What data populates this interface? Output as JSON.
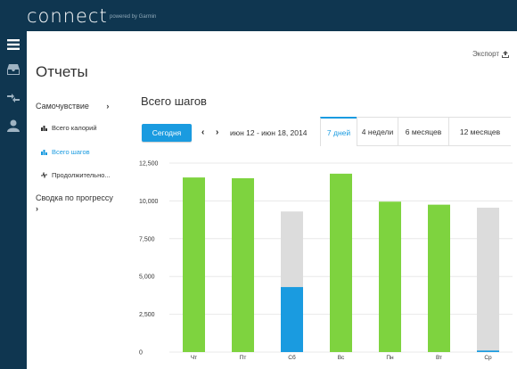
{
  "app": {
    "logo": "connect",
    "powered_by": "powered by Garmin"
  },
  "nav_icons": [
    "menu-icon",
    "inbox-icon",
    "connections-icon",
    "user-icon"
  ],
  "page": {
    "title": "Отчеты",
    "export_label": "Экспорт"
  },
  "sidebar": {
    "wellness": {
      "label": "Самочувствие",
      "items": [
        {
          "label": "Всего калорий",
          "icon": "bar-chart-icon",
          "active": false
        },
        {
          "label": "Всего шагов",
          "icon": "bar-chart-icon",
          "active": true
        },
        {
          "label": "Продолжительно...",
          "icon": "activity-icon",
          "active": false
        }
      ]
    },
    "progress": {
      "label": "Сводка по прогрессу"
    }
  },
  "report": {
    "title": "Всего шагов",
    "today_label": "Сегодня",
    "date_range": "июн 12 - июн 18, 2014",
    "tabs": [
      {
        "label": "7 дней",
        "active": true
      },
      {
        "label": "4 недели",
        "active": false
      },
      {
        "label": "6 месяцев",
        "active": false
      },
      {
        "label": "12 месяцев",
        "active": false
      }
    ]
  },
  "chart_data": {
    "type": "bar",
    "title": "",
    "categories": [
      "Чт",
      "Пт",
      "Сб",
      "Вс",
      "Пн",
      "Вт",
      "Ср"
    ],
    "series": [
      {
        "values": [
          11550,
          11500,
          4300,
          11800,
          9950,
          9750,
          100
        ]
      },
      {
        "values": [
          11550,
          11500,
          9300,
          11800,
          9950,
          9750,
          9550
        ]
      }
    ],
    "y_ticks": [
      "0",
      "2,500",
      "5,000",
      "7,500",
      "10,000",
      "12,500"
    ],
    "ylim": [
      0,
      12500
    ],
    "grid": true,
    "colors": {
      "goal_met": "#7ed33f",
      "steps": "#1a9be0",
      "goal": "#dcdcdc"
    }
  }
}
